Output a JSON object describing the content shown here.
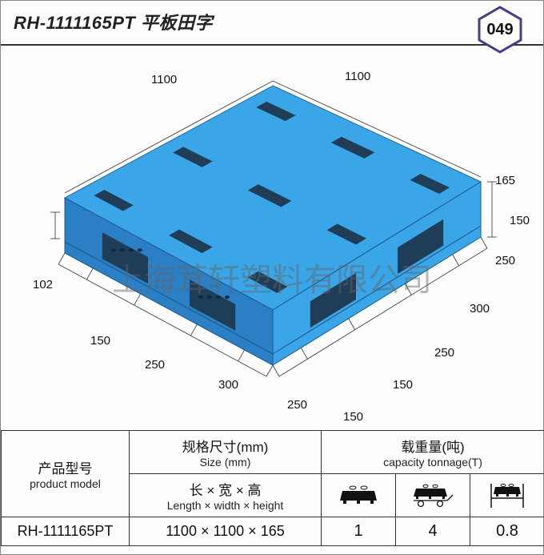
{
  "header": {
    "title": "RH-1111165PT 平板田字",
    "badge_number": "049"
  },
  "watermark": "上海茸轩塑料有限公司",
  "diagram": {
    "pallet_color": "#3aa6e8",
    "pallet_shade": "#2b7fc4",
    "pallet_slot": "#1f3d57",
    "hole_color": "#0f2a40",
    "dimensions": {
      "top_depth": "1100",
      "top_width": "1100",
      "height": "165",
      "left_small": "102",
      "front_segments": [
        "150",
        "250",
        "300",
        "250",
        "150"
      ],
      "right_segments": [
        "150",
        "250",
        "300",
        "250",
        "150"
      ]
    }
  },
  "spec_table": {
    "col_pm_cn": "产品型号",
    "col_pm_en": "product model",
    "col_size_cn": "规格尺寸(mm)",
    "col_size_en": "Size (mm)",
    "col_dim_cn": "长 × 宽 × 高",
    "col_dim_en": "Length × width × height",
    "col_cap_cn": "载重量(吨)",
    "col_cap_en": "capacity tonnage(T)",
    "rows": [
      {
        "model": "RH-1111165PT",
        "size": "1100 × 1100 × 165",
        "static": "1",
        "dynamic": "4",
        "rack": "0.8"
      }
    ]
  },
  "icons": {
    "color": "#111"
  }
}
